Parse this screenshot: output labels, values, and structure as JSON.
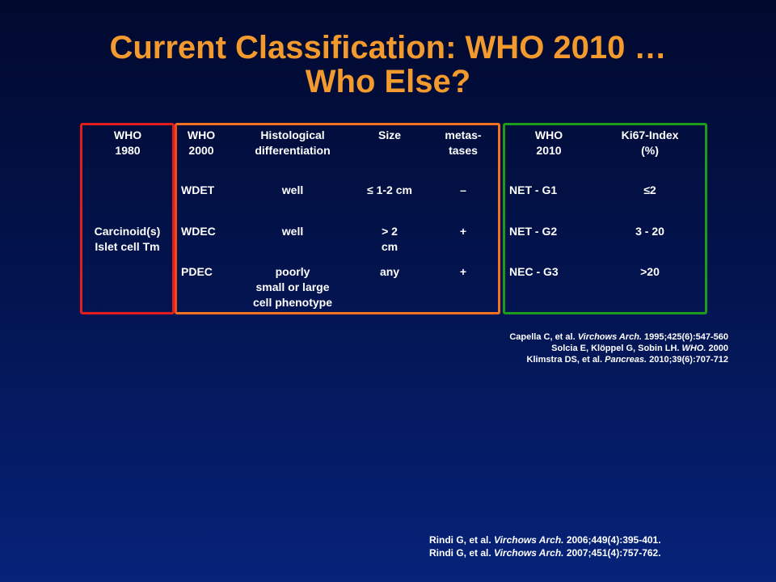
{
  "title": {
    "line1": "Current Classification: WHO 2010 …",
    "line2": "Who Else?"
  },
  "colors": {
    "background_top": "#01092e",
    "background_bottom": "#06237a",
    "title": "#f29a2e",
    "who1980_box": "#e21d1d",
    "who2000_box": "#f37120",
    "who2010_box": "#1c9b1c"
  },
  "table": {
    "who1980": {
      "header": [
        "WHO",
        "1980"
      ],
      "value": [
        "Carcinoid(s)",
        "Islet cell Tm"
      ]
    },
    "who2000": {
      "headers": {
        "who2000": [
          "WHO",
          "2000"
        ],
        "histological": [
          "Histological",
          "differentiation"
        ],
        "size": [
          "Size"
        ],
        "metastases": [
          "metas-",
          "tases"
        ]
      },
      "rows": [
        {
          "who2000": "WDET",
          "histological": [
            "well"
          ],
          "size": [
            "≤ 1-2 cm"
          ],
          "metastases": "–"
        },
        {
          "who2000": "WDEC",
          "histological": [
            "well"
          ],
          "size": [
            "> 2",
            "cm"
          ],
          "metastases": "+"
        },
        {
          "who2000": "PDEC",
          "histological": [
            "poorly",
            "small or large",
            "cell phenotype"
          ],
          "size": [
            "any"
          ],
          "metastases": "+"
        }
      ]
    },
    "who2010": {
      "headers": {
        "who2010": [
          "WHO",
          "2010"
        ],
        "ki67": [
          "Ki67-Index",
          "(%)"
        ]
      },
      "rows": [
        {
          "who2010": "NET - G1",
          "ki67": "≤2"
        },
        {
          "who2010": "NET - G2",
          "ki67": "3 - 20"
        },
        {
          "who2010": "NEC - G3",
          "ki67": ">20"
        }
      ]
    }
  },
  "references": [
    {
      "pre": "Capella C, et al. ",
      "journal": "Virchows Arch.",
      "post": " 1995;425(6):547-560"
    },
    {
      "pre": "Solcia E, Klöppel  G,  Sobin LH. ",
      "journal": "WHO.",
      "post": " 2000"
    },
    {
      "pre": "Klimstra DS,  et al. ",
      "journal": "Pancreas.",
      "post": " 2010;39(6):707-712"
    }
  ],
  "references2": [
    {
      "pre": "Rindi G, et al. ",
      "journal": "Virchows Arch.",
      "post": " 2006;449(4):395-401."
    },
    {
      "pre": "Rindi G, et al. ",
      "journal": "Virchows Arch.",
      "post": " 2007;451(4):757-762."
    }
  ]
}
